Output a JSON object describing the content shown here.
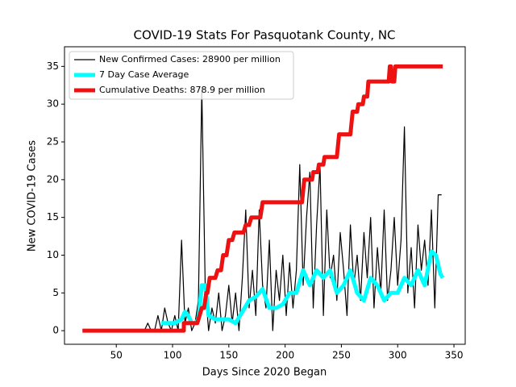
{
  "chart_data": {
    "type": "line",
    "title": "COVID-19 Stats For Pasquotank County, NC",
    "xlabel": "Days Since 2020 Began",
    "ylabel": "New COVID-19 Cases",
    "xlim": [
      4,
      360
    ],
    "ylim": [
      -1.8,
      37.6
    ],
    "xticks": [
      50,
      100,
      150,
      200,
      250,
      300,
      350
    ],
    "yticks": [
      0,
      5,
      10,
      15,
      20,
      25,
      30,
      35
    ],
    "legend": "upper left",
    "series": [
      {
        "name": "New Confirmed Cases: 28900 per million",
        "color": "#000000",
        "x": [
          20,
          75,
          78,
          81,
          84,
          87,
          90,
          93,
          96,
          99,
          102,
          105,
          108,
          111,
          114,
          117,
          120,
          123,
          126,
          129,
          132,
          135,
          138,
          141,
          144,
          147,
          150,
          153,
          156,
          159,
          162,
          165,
          168,
          171,
          174,
          177,
          180,
          183,
          186,
          189,
          192,
          195,
          198,
          201,
          204,
          207,
          210,
          213,
          216,
          219,
          222,
          225,
          228,
          231,
          234,
          237,
          240,
          243,
          246,
          249,
          252,
          255,
          258,
          261,
          264,
          267,
          270,
          273,
          276,
          279,
          282,
          285,
          288,
          291,
          294,
          297,
          300,
          303,
          306,
          309,
          312,
          315,
          318,
          321,
          324,
          327,
          330,
          333,
          336,
          339
        ],
        "values": [
          0,
          0,
          1,
          0,
          0,
          2,
          0,
          3,
          1,
          0,
          2,
          0,
          12,
          1,
          3,
          0,
          1,
          4,
          32,
          6,
          0,
          3,
          1,
          5,
          0,
          2,
          6,
          1,
          5,
          0,
          7,
          16,
          3,
          8,
          2,
          16,
          6,
          3,
          12,
          0,
          8,
          4,
          10,
          2,
          9,
          3,
          8,
          22,
          6,
          15,
          21,
          3,
          14,
          22,
          2,
          16,
          7,
          10,
          4,
          13,
          8,
          2,
          14,
          6,
          10,
          4,
          13,
          7,
          15,
          3,
          11,
          5,
          16,
          4,
          8,
          15,
          6,
          12,
          27,
          5,
          11,
          3,
          14,
          8,
          12,
          6,
          16,
          3,
          18,
          18
        ]
      },
      {
        "name": "7 Day Case Average",
        "color": "#00ffff",
        "x": [
          90,
          96,
          102,
          108,
          111,
          114,
          117,
          120,
          123,
          126,
          129,
          132,
          138,
          144,
          150,
          156,
          162,
          168,
          174,
          180,
          186,
          192,
          198,
          204,
          210,
          216,
          222,
          228,
          234,
          240,
          246,
          252,
          258,
          264,
          270,
          276,
          282,
          288,
          294,
          300,
          306,
          312,
          318,
          324,
          330,
          334,
          338,
          340
        ],
        "values": [
          1,
          1,
          1,
          1.5,
          2.5,
          2,
          1,
          1,
          1.5,
          6,
          6,
          2,
          1.5,
          1.5,
          1.5,
          1,
          2.5,
          4,
          4.5,
          5.5,
          3,
          3,
          3.5,
          5,
          5,
          8,
          6,
          8,
          7,
          8,
          5,
          6,
          8,
          5,
          4,
          7,
          6,
          4,
          5,
          5,
          7,
          6,
          8,
          6,
          10.5,
          10,
          7.5,
          7
        ]
      },
      {
        "name": "Cumulative Deaths: 878.9 per million",
        "color": "#ee1111",
        "x": [
          20,
          110,
          110,
          122,
          126,
          128,
          130,
          131,
          133,
          138,
          140,
          143,
          145,
          148,
          150,
          153,
          155,
          163,
          165,
          168,
          170,
          178,
          180,
          215,
          217,
          224,
          225,
          229,
          230,
          234,
          235,
          246,
          248,
          258,
          260,
          264,
          265,
          269,
          270,
          273,
          274,
          292,
          293,
          294,
          295,
          297,
          298,
          340
        ],
        "values": [
          0,
          0,
          1,
          1,
          3,
          3,
          5,
          5,
          7,
          7,
          8,
          8,
          10,
          10,
          12,
          12,
          13,
          13,
          14,
          14,
          15,
          15,
          17,
          17,
          20,
          20,
          21,
          21,
          22,
          22,
          23,
          23,
          26,
          26,
          29,
          29,
          30,
          30,
          31,
          31,
          33,
          33,
          35,
          35,
          33,
          33,
          35,
          35
        ]
      }
    ]
  }
}
